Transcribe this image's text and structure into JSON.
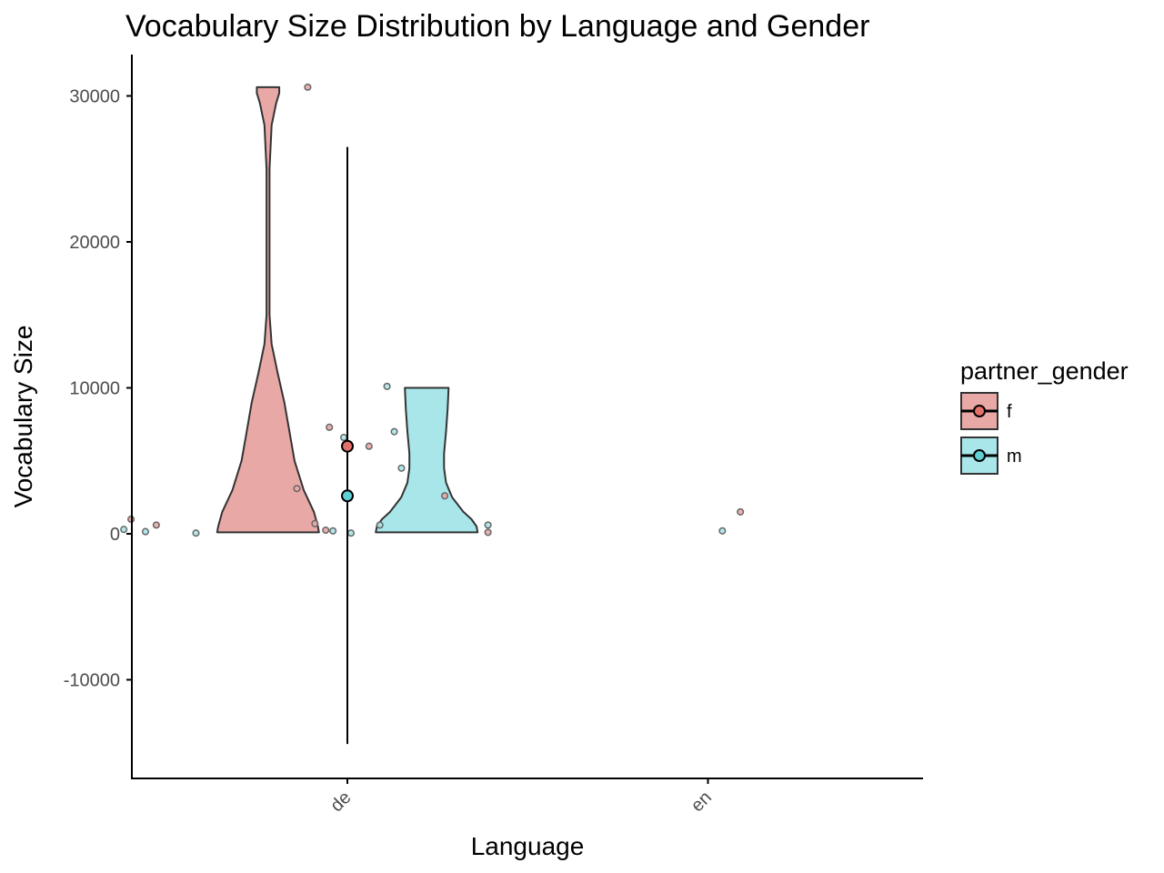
{
  "chart_data": {
    "type": "violin",
    "title": "Vocabulary Size Distribution by Language and Gender",
    "xlabel": "Language",
    "ylabel": "Vocabulary Size",
    "categories": [
      "de",
      "en"
    ],
    "ylim": [
      -16700,
      32800
    ],
    "yticks": [
      -10000,
      0,
      10000,
      20000,
      30000
    ],
    "ytick_labels": [
      "-10000",
      "0",
      "10000",
      "20000",
      "30000"
    ],
    "grid": false,
    "legend": {
      "title": "partner_gender",
      "position": "right",
      "entries": [
        {
          "label": "f",
          "color": "#e8a8a6",
          "point_color": "#e4706b"
        },
        {
          "label": "m",
          "color": "#a8e6ea",
          "point_color": "#5fd0d6"
        }
      ]
    },
    "violins": [
      {
        "group": "f",
        "category": "de",
        "offset": -0.22,
        "min": 100,
        "max": 30600,
        "profile": [
          [
            100,
            1.0
          ],
          [
            500,
            0.98
          ],
          [
            1500,
            0.9
          ],
          [
            3000,
            0.7
          ],
          [
            5000,
            0.52
          ],
          [
            7000,
            0.42
          ],
          [
            9000,
            0.32
          ],
          [
            11000,
            0.19
          ],
          [
            13000,
            0.07
          ],
          [
            15000,
            0.03
          ],
          [
            20000,
            0.03
          ],
          [
            25000,
            0.03
          ],
          [
            28000,
            0.07
          ],
          [
            29500,
            0.16
          ],
          [
            30200,
            0.22
          ],
          [
            30600,
            0.22
          ]
        ]
      },
      {
        "group": "m",
        "category": "de",
        "offset": 0.22,
        "min": 100,
        "max": 10000,
        "profile": [
          [
            100,
            1.0
          ],
          [
            500,
            0.98
          ],
          [
            1000,
            0.88
          ],
          [
            1500,
            0.72
          ],
          [
            2500,
            0.5
          ],
          [
            3500,
            0.38
          ],
          [
            4500,
            0.34
          ],
          [
            5500,
            0.34
          ],
          [
            7000,
            0.38
          ],
          [
            8500,
            0.41
          ],
          [
            10000,
            0.43
          ]
        ]
      }
    ],
    "summary": [
      {
        "group": "f",
        "category": "de",
        "mean": 6000,
        "lower": -4200,
        "upper": 9300
      },
      {
        "group": "m",
        "category": "de",
        "mean": 2600,
        "lower": -14400,
        "upper": 26500
      }
    ],
    "points": [
      {
        "group": "f",
        "x": 0.4,
        "y": 1000
      },
      {
        "group": "f",
        "x": 0.47,
        "y": 600
      },
      {
        "group": "f",
        "x": 0.89,
        "y": 30600
      },
      {
        "group": "f",
        "x": 0.86,
        "y": 3100
      },
      {
        "group": "f",
        "x": 0.91,
        "y": 700
      },
      {
        "group": "f",
        "x": 0.95,
        "y": 7300
      },
      {
        "group": "f",
        "x": 0.94,
        "y": 250
      },
      {
        "group": "f",
        "x": 1.06,
        "y": 6000
      },
      {
        "group": "f",
        "x": 1.27,
        "y": 2600
      },
      {
        "group": "f",
        "x": 1.39,
        "y": 100
      },
      {
        "group": "f",
        "x": 2.09,
        "y": 1500
      },
      {
        "group": "m",
        "x": 0.38,
        "y": 300
      },
      {
        "group": "m",
        "x": 0.44,
        "y": 150
      },
      {
        "group": "m",
        "x": 0.58,
        "y": 50
      },
      {
        "group": "m",
        "x": 0.96,
        "y": 200
      },
      {
        "group": "m",
        "x": 0.99,
        "y": 6600
      },
      {
        "group": "m",
        "x": 1.01,
        "y": 50
      },
      {
        "group": "m",
        "x": 1.09,
        "y": 600
      },
      {
        "group": "m",
        "x": 1.11,
        "y": 10100
      },
      {
        "group": "m",
        "x": 1.13,
        "y": 7000
      },
      {
        "group": "m",
        "x": 1.15,
        "y": 4500
      },
      {
        "group": "m",
        "x": 1.39,
        "y": 600
      },
      {
        "group": "m",
        "x": 2.04,
        "y": 200
      }
    ]
  }
}
